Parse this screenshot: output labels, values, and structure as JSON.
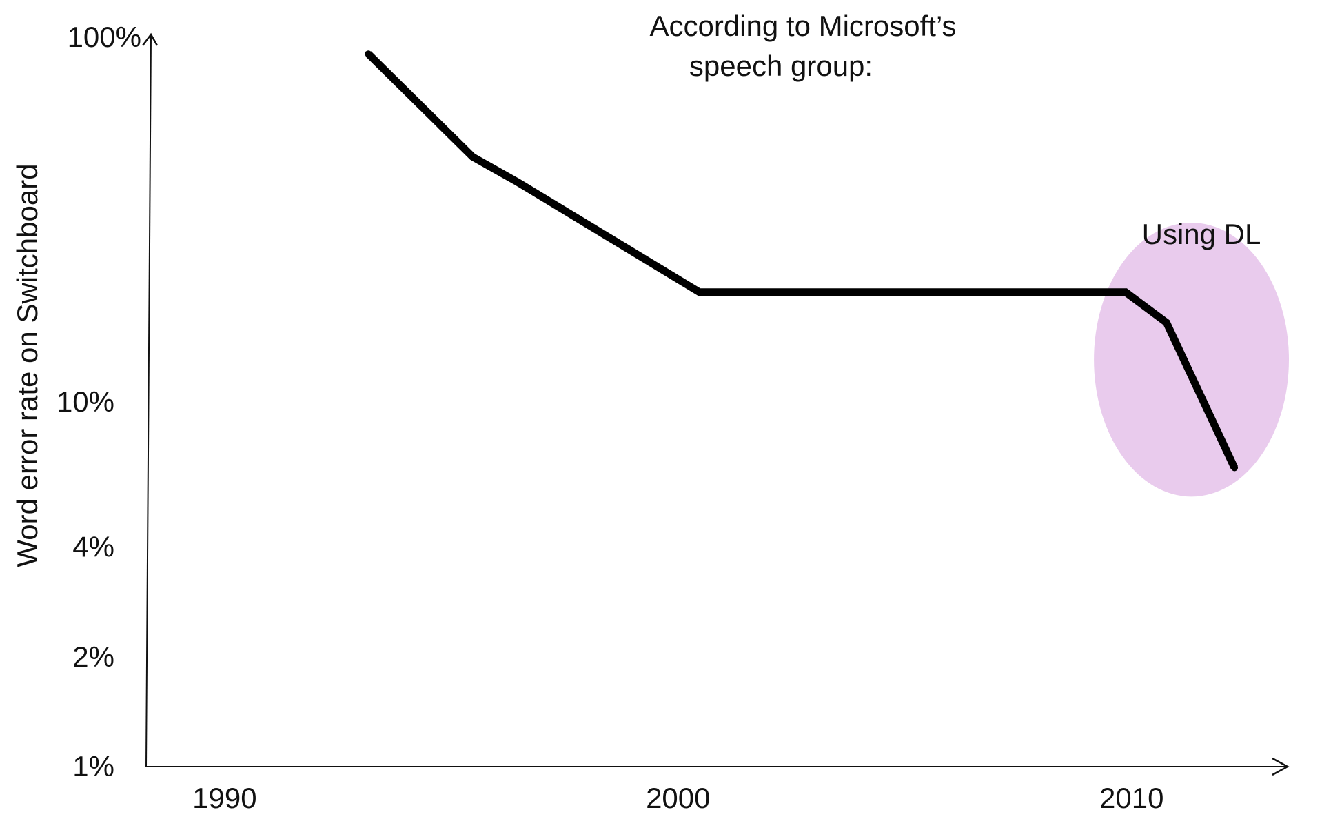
{
  "chart_data": {
    "type": "line",
    "title": "According to Microsoft’s speech group:",
    "title_lines": [
      "According to Microsoft’s",
      "speech group:"
    ],
    "xlabel": "",
    "ylabel": "Word error rate on Switchboard",
    "y_scale": "log",
    "xlim": [
      1988.3,
      2013.5
    ],
    "ylim": [
      1,
      100
    ],
    "x_ticks": [
      1990,
      2000,
      2010
    ],
    "x_tick_labels": [
      "1990",
      "2000",
      "2010"
    ],
    "y_ticks": [
      1,
      2,
      4,
      10,
      100
    ],
    "y_tick_labels": [
      "1%",
      "2%",
      "4%",
      "10%",
      "100%"
    ],
    "grid": false,
    "series": [
      {
        "name": "",
        "color": "#000000",
        "x": [
          1993.2,
          1995.5,
          1996.5,
          2000.5,
          2009.9,
          2010.8,
          2012.3
        ],
        "y": [
          90,
          47,
          40,
          20,
          20,
          16.5,
          6.6
        ]
      }
    ],
    "annotations": [
      {
        "text": "Using DL",
        "highlight_color": "#e9cbed",
        "x_range": [
          2009.2,
          2013.5
        ],
        "y_range": [
          5.5,
          31
        ]
      }
    ]
  }
}
